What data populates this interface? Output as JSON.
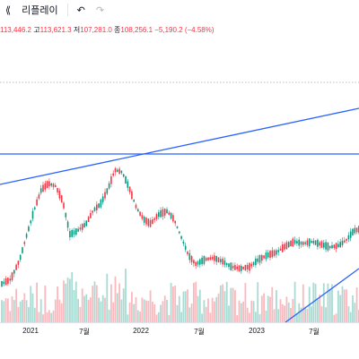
{
  "toolbar": {
    "replay_label": "리플레이",
    "undo_icon": "undo-icon",
    "redo_icon": "redo-icon",
    "rewind_icon": "rewind-icon"
  },
  "legend": {
    "open_value": "113,446.2",
    "high_label": "고",
    "high_value": "113,621.3",
    "low_label": "저",
    "low_value": "107,281.0",
    "close_label": "종",
    "close_value": "108,256.1",
    "change": "−5,190.2 (−4.58%)",
    "down_color": "#f23645",
    "up_color": "#089981"
  },
  "xaxis": {
    "labels": [
      "2021",
      "7월",
      "2022",
      "7월",
      "2023",
      "7월"
    ]
  },
  "drawing_colors": {
    "trendline": "#2962ff",
    "dotted_line": "#787b86"
  }
}
